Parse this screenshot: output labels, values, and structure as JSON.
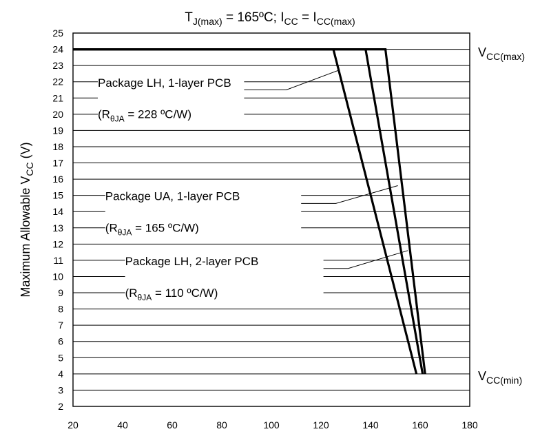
{
  "chart_data": {
    "type": "line",
    "title": {
      "parts": [
        {
          "text": "T",
          "sub": false
        },
        {
          "text": "J(max)",
          "sub": true
        },
        {
          "text": " = 165ºC; I",
          "sub": false
        },
        {
          "text": "CC",
          "sub": true
        },
        {
          "text": " =  I",
          "sub": false
        },
        {
          "text": "CC(max)",
          "sub": true
        }
      ]
    },
    "ylabel": {
      "parts": [
        {
          "text": "Maximum Allowable V",
          "sub": false
        },
        {
          "text": "CC",
          "sub": true
        },
        {
          "text": " (V)",
          "sub": false
        }
      ]
    },
    "xlabel": "",
    "xlim": [
      20,
      180
    ],
    "ylim": [
      2,
      25
    ],
    "xticks": [
      "20",
      "40",
      "60",
      "80",
      "100",
      "120",
      "140",
      "160",
      "180"
    ],
    "yticks": [
      "2",
      "3",
      "4",
      "5",
      "6",
      "7",
      "8",
      "9",
      "10",
      "11",
      "12",
      "13",
      "14",
      "15",
      "16",
      "17",
      "18",
      "19",
      "20",
      "21",
      "22",
      "23",
      "24",
      "25"
    ],
    "grid": "horizontal",
    "series": [
      {
        "points": [
          [
            20,
            24
          ],
          [
            125,
            24
          ],
          [
            158.5,
            4
          ]
        ]
      },
      {
        "points": [
          [
            20,
            24
          ],
          [
            138,
            24
          ],
          [
            161,
            4
          ]
        ]
      },
      {
        "points": [
          [
            20,
            24
          ],
          [
            146,
            24
          ],
          [
            162,
            4
          ]
        ]
      }
    ],
    "annotations": [
      {
        "lines": [
          [
            {
              "text": "Package LH, 1-layer PCB",
              "sub": false
            }
          ],
          [
            {
              "text": "(R",
              "sub": false
            },
            {
              "text": "θJA",
              "sub": true
            },
            {
              "text": " = 228 ºC/W)",
              "sub": false
            }
          ]
        ]
      },
      {
        "lines": [
          [
            {
              "text": "Package UA, 1-layer PCB",
              "sub": false
            }
          ],
          [
            {
              "text": "(R",
              "sub": false
            },
            {
              "text": "θJA",
              "sub": true
            },
            {
              "text": " = 165 ºC/W)",
              "sub": false
            }
          ]
        ]
      },
      {
        "lines": [
          [
            {
              "text": "Package LH, 2-layer PCB",
              "sub": false
            }
          ],
          [
            {
              "text": "(R",
              "sub": false
            },
            {
              "text": "θJA",
              "sub": true
            },
            {
              "text": " = 110 ºC/W)",
              "sub": false
            }
          ]
        ]
      }
    ],
    "right_labels": [
      {
        "parts": [
          {
            "text": "V",
            "sub": false
          },
          {
            "text": "CC(max)",
            "sub": true
          }
        ]
      },
      {
        "parts": [
          {
            "text": "V",
            "sub": false
          },
          {
            "text": "CC(min)",
            "sub": true
          }
        ]
      }
    ]
  }
}
